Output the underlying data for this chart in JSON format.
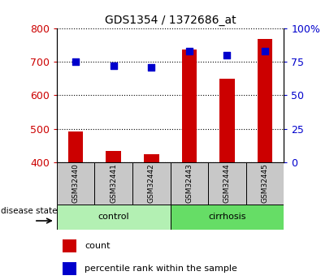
{
  "title": "GDS1354 / 1372686_at",
  "samples": [
    "GSM32440",
    "GSM32441",
    "GSM32442",
    "GSM32443",
    "GSM32444",
    "GSM32445"
  ],
  "counts": [
    493,
    435,
    425,
    737,
    648,
    768
  ],
  "percentiles": [
    75,
    72,
    71,
    83,
    80,
    83
  ],
  "y_min": 400,
  "y_max": 800,
  "y_ticks": [
    400,
    500,
    600,
    700,
    800
  ],
  "y2_ticks": [
    0,
    25,
    50,
    75,
    100
  ],
  "y2_labels": [
    "0",
    "25",
    "50",
    "75",
    "100%"
  ],
  "groups": [
    {
      "label": "control",
      "indices": [
        0,
        1,
        2
      ],
      "color": "#b3f0b3"
    },
    {
      "label": "cirrhosis",
      "indices": [
        3,
        4,
        5
      ],
      "color": "#66dd66"
    }
  ],
  "bar_color": "#cc0000",
  "dot_color": "#0000cc",
  "bar_width": 0.4,
  "grid_color": "black",
  "label_color_left": "#cc0000",
  "label_color_right": "#0000cc",
  "label_disease_state": "disease state",
  "legend_count": "count",
  "legend_percentile": "percentile rank within the sample",
  "box_bg": "#c8c8c8"
}
